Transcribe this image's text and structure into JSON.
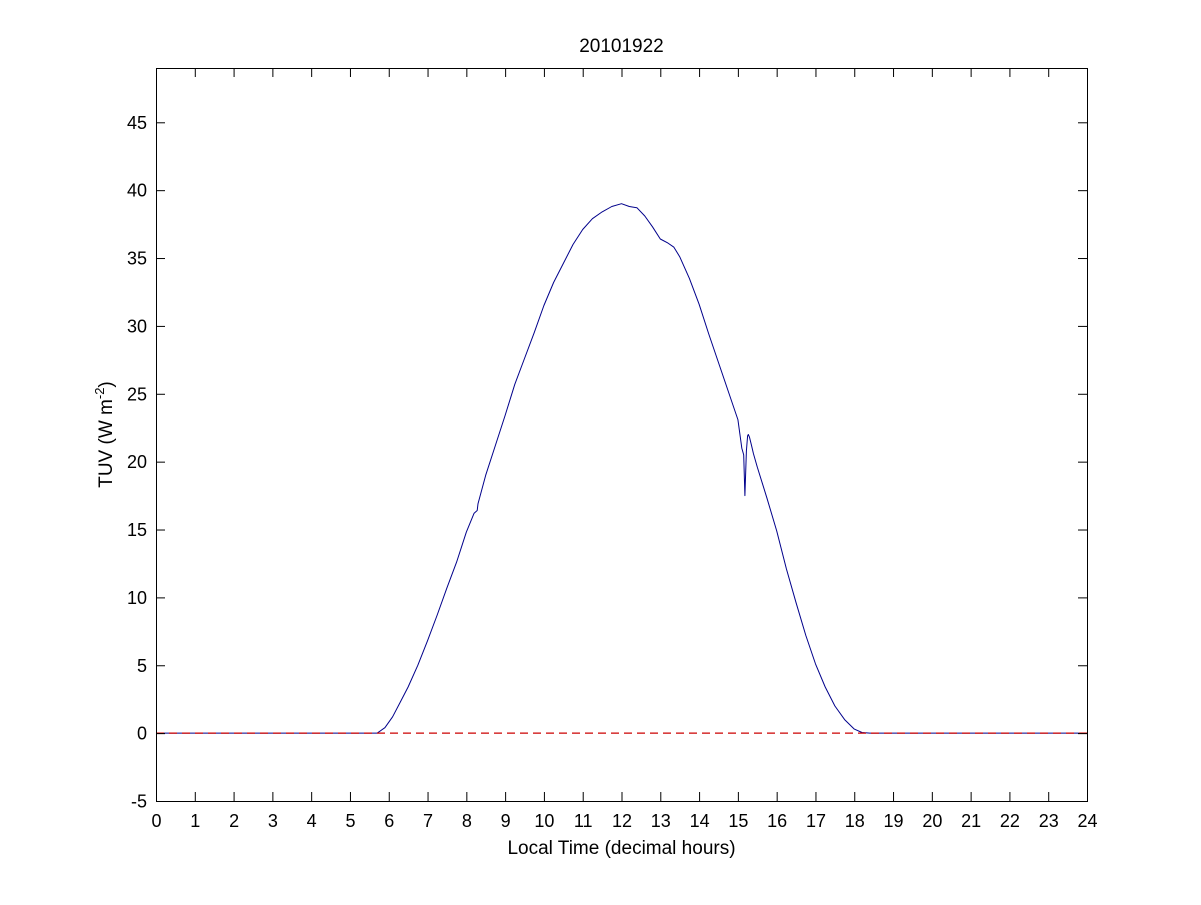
{
  "chart_data": {
    "type": "line",
    "title": "20101922",
    "xlabel": "Local Time (decimal hours)",
    "ylabel": {
      "main": "TUV (W m",
      "superscript": "-2",
      "close": ")"
    },
    "xlim": [
      0,
      24
    ],
    "ylim": [
      -5,
      49
    ],
    "x_ticks": [
      0,
      1,
      2,
      3,
      4,
      5,
      6,
      7,
      8,
      9,
      10,
      11,
      12,
      13,
      14,
      15,
      16,
      17,
      18,
      19,
      20,
      21,
      22,
      23,
      24
    ],
    "x_tick_labels": [
      "0",
      "1",
      "2",
      "3",
      "4",
      "5",
      "6",
      "7",
      "8",
      "9",
      "10",
      "11",
      "12",
      "13",
      "14",
      "15",
      "16",
      "17",
      "18",
      "19",
      "20",
      "21",
      "22",
      "23",
      "24"
    ],
    "y_ticks": [
      -5,
      0,
      5,
      10,
      15,
      20,
      25,
      30,
      35,
      40,
      45
    ],
    "y_tick_labels": [
      "-5",
      "0",
      "5",
      "10",
      "15",
      "20",
      "25",
      "30",
      "35",
      "40",
      "45"
    ],
    "grid": false,
    "legend": "none",
    "colors": {
      "series": "#00008b",
      "zero_line": "#cc0000",
      "axes": "#000000"
    },
    "series": [
      {
        "style": "solid",
        "x": [
          0,
          5.7,
          5.9,
          6.1,
          6.3,
          6.5,
          6.75,
          7.0,
          7.25,
          7.5,
          7.75,
          8.0,
          8.2,
          8.28,
          8.3,
          8.5,
          8.75,
          9.0,
          9.25,
          9.5,
          9.75,
          10.0,
          10.25,
          10.5,
          10.75,
          11.0,
          11.25,
          11.5,
          11.75,
          12.0,
          12.2,
          12.4,
          12.6,
          12.8,
          13.0,
          13.2,
          13.35,
          13.5,
          13.75,
          14.0,
          14.25,
          14.5,
          14.75,
          15.0,
          15.1,
          15.15,
          15.18,
          15.22,
          15.25,
          15.27,
          15.3,
          15.35,
          15.4,
          15.5,
          15.75,
          16.0,
          16.25,
          16.5,
          16.75,
          17.0,
          17.25,
          17.5,
          17.75,
          18.0,
          18.2,
          18.4,
          18.6,
          24
        ],
        "values": [
          0,
          0,
          0.4,
          1.2,
          2.3,
          3.4,
          5.0,
          6.8,
          8.7,
          10.7,
          12.6,
          14.8,
          16.2,
          16.4,
          16.9,
          19.0,
          21.2,
          23.4,
          25.7,
          27.6,
          29.5,
          31.5,
          33.2,
          34.6,
          36.0,
          37.1,
          37.9,
          38.4,
          38.8,
          39.0,
          38.8,
          38.7,
          38.1,
          37.3,
          36.4,
          36.1,
          35.8,
          35.1,
          33.5,
          31.6,
          29.4,
          27.3,
          25.2,
          23.1,
          21.0,
          20.5,
          17.5,
          20.8,
          21.9,
          22.0,
          21.8,
          21.2,
          20.6,
          19.6,
          17.3,
          14.9,
          12.1,
          9.6,
          7.2,
          5.1,
          3.4,
          2.0,
          1.0,
          0.3,
          0.05,
          0,
          0,
          0
        ]
      },
      {
        "style": "dashed",
        "x": [
          0,
          24
        ],
        "values": [
          0,
          0
        ]
      }
    ]
  }
}
